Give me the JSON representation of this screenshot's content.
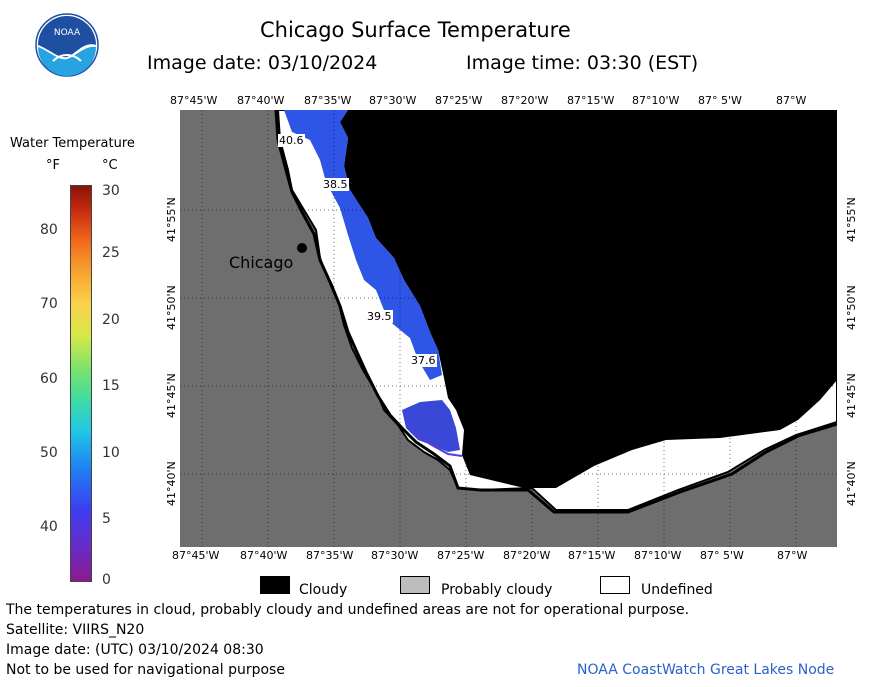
{
  "header": {
    "title": "Chicago Surface Temperature",
    "image_date": "Image date: 03/10/2024",
    "image_time": "Image time: 03:30 (EST)"
  },
  "logo": {
    "text": "NOAA",
    "colors": {
      "top": "#1f4fa0",
      "bottom": "#27a3e2"
    }
  },
  "scale": {
    "title": "Water Temperature",
    "unit_f": "°F",
    "unit_c": "°C",
    "f_ticks": [
      "80",
      "70",
      "60",
      "50",
      "40"
    ],
    "c_ticks": [
      "30",
      "25",
      "20",
      "15",
      "10",
      "5",
      "0"
    ]
  },
  "axes": {
    "lon_labels": [
      "87°45'W",
      "87°40'W",
      "87°35'W",
      "87°30'W",
      "87°25'W",
      "87°20'W",
      "87°15'W",
      "87°10'W",
      "87° 5'W",
      "87°W"
    ],
    "lat_labels": [
      "41°55'N",
      "41°50'N",
      "41°45'N",
      "41°40'N"
    ]
  },
  "map": {
    "city": "Chicago",
    "temp_labels": [
      "40.6",
      "38.5",
      "39.5",
      "37.6"
    ],
    "colors": {
      "land": "#6e6e6e",
      "cloudy": "#000000",
      "water_cold": "#2f55e6",
      "undefined": "#ffffff"
    }
  },
  "legend": {
    "cloudy": "Cloudy",
    "probably_cloudy": "Probably cloudy",
    "undefined": "Undefined"
  },
  "footer": {
    "note": "The temperatures in cloud, probably cloudy and undefined areas are not for operational purpose.",
    "satellite": "Satellite: VIIRS_N20",
    "utc_date": "Image date: (UTC) 03/10/2024  08:30",
    "nav_warning": "Not to be used for navigational purpose",
    "credit": "NOAA CoastWatch Great Lakes Node"
  }
}
